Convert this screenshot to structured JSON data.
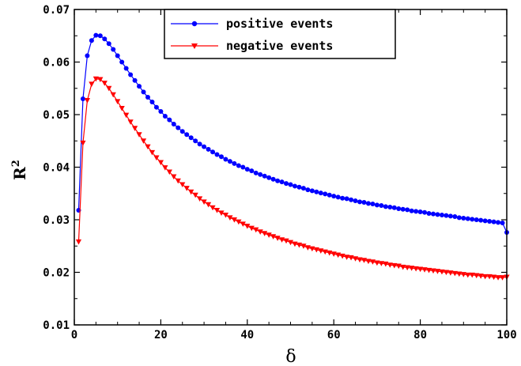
{
  "chart_data": {
    "type": "line",
    "xlabel": "δ",
    "ylabel": "R",
    "ylabel_superscript": "2",
    "xlim": [
      0,
      100
    ],
    "ylim": [
      0.01,
      0.07
    ],
    "x_ticks": [
      0,
      20,
      40,
      60,
      80,
      100
    ],
    "x_tick_labels": [
      "0",
      "20",
      "40",
      "60",
      "80",
      "100"
    ],
    "y_ticks": [
      0.01,
      0.02,
      0.03,
      0.04,
      0.05,
      0.06,
      0.07
    ],
    "y_tick_labels": [
      "0.01",
      "0.02",
      "0.03",
      "0.04",
      "0.05",
      "0.06",
      "0.07"
    ],
    "legend_position": "top-center",
    "series": [
      {
        "name": "positive events",
        "color": "#0000ff",
        "marker": "circle",
        "x": [
          1,
          2,
          3,
          4,
          5,
          6,
          7,
          8,
          9,
          10,
          11,
          12,
          13,
          14,
          15,
          16,
          17,
          18,
          19,
          20,
          21,
          22,
          23,
          24,
          25,
          26,
          27,
          28,
          29,
          30,
          31,
          32,
          33,
          34,
          35,
          36,
          37,
          38,
          39,
          40,
          41,
          42,
          43,
          44,
          45,
          46,
          47,
          48,
          49,
          50,
          51,
          52,
          53,
          54,
          55,
          56,
          57,
          58,
          59,
          60,
          61,
          62,
          63,
          64,
          65,
          66,
          67,
          68,
          69,
          70,
          71,
          72,
          73,
          74,
          75,
          76,
          77,
          78,
          79,
          80,
          81,
          82,
          83,
          84,
          85,
          86,
          87,
          88,
          89,
          90,
          91,
          92,
          93,
          94,
          95,
          96,
          97,
          98,
          99,
          100
        ],
        "y": [
          0.0318,
          0.053,
          0.0612,
          0.0641,
          0.0651,
          0.065,
          0.0644,
          0.0635,
          0.0624,
          0.0612,
          0.06,
          0.0588,
          0.0576,
          0.0565,
          0.0554,
          0.0543,
          0.0533,
          0.0524,
          0.0514,
          0.0506,
          0.0497,
          0.049,
          0.0482,
          0.0475,
          0.0468,
          0.0462,
          0.0456,
          0.045,
          0.0444,
          0.0439,
          0.0434,
          0.0429,
          0.0424,
          0.042,
          0.0415,
          0.0411,
          0.0407,
          0.0403,
          0.04,
          0.0396,
          0.0393,
          0.0389,
          0.0386,
          0.0383,
          0.038,
          0.0377,
          0.0374,
          0.0372,
          0.0369,
          0.0367,
          0.0364,
          0.0362,
          0.036,
          0.0357,
          0.0355,
          0.0353,
          0.0351,
          0.0349,
          0.0347,
          0.0345,
          0.0343,
          0.0341,
          0.034,
          0.0338,
          0.0336,
          0.0334,
          0.0333,
          0.0331,
          0.033,
          0.0328,
          0.0327,
          0.0325,
          0.0324,
          0.0323,
          0.0321,
          0.032,
          0.0319,
          0.0317,
          0.0316,
          0.0315,
          0.0314,
          0.0312,
          0.0311,
          0.031,
          0.0309,
          0.0308,
          0.0307,
          0.0306,
          0.0304,
          0.0303,
          0.0302,
          0.0301,
          0.03,
          0.0299,
          0.0298,
          0.0297,
          0.0296,
          0.0295,
          0.0294,
          0.0276
        ]
      },
      {
        "name": "negative events",
        "color": "#ff0000",
        "marker": "triangle-down",
        "x": [
          1,
          2,
          3,
          4,
          5,
          6,
          7,
          8,
          9,
          10,
          11,
          12,
          13,
          14,
          15,
          16,
          17,
          18,
          19,
          20,
          21,
          22,
          23,
          24,
          25,
          26,
          27,
          28,
          29,
          30,
          31,
          32,
          33,
          34,
          35,
          36,
          37,
          38,
          39,
          40,
          41,
          42,
          43,
          44,
          45,
          46,
          47,
          48,
          49,
          50,
          51,
          52,
          53,
          54,
          55,
          56,
          57,
          58,
          59,
          60,
          61,
          62,
          63,
          64,
          65,
          66,
          67,
          68,
          69,
          70,
          71,
          72,
          73,
          74,
          75,
          76,
          77,
          78,
          79,
          80,
          81,
          82,
          83,
          84,
          85,
          86,
          87,
          88,
          89,
          90,
          91,
          92,
          93,
          94,
          95,
          96,
          97,
          98,
          99,
          100
        ],
        "y": [
          0.0258,
          0.0446,
          0.0527,
          0.0558,
          0.0568,
          0.0567,
          0.056,
          0.055,
          0.0538,
          0.0525,
          0.0512,
          0.0499,
          0.0486,
          0.0474,
          0.0462,
          0.045,
          0.0439,
          0.0428,
          0.0418,
          0.0409,
          0.0399,
          0.0391,
          0.0382,
          0.0374,
          0.0367,
          0.036,
          0.0353,
          0.0347,
          0.034,
          0.0334,
          0.0329,
          0.0323,
          0.0318,
          0.0313,
          0.0309,
          0.0304,
          0.03,
          0.0296,
          0.0292,
          0.0288,
          0.0284,
          0.0281,
          0.0277,
          0.0274,
          0.0271,
          0.0268,
          0.0265,
          0.0262,
          0.026,
          0.0257,
          0.0254,
          0.0252,
          0.025,
          0.0247,
          0.0245,
          0.0243,
          0.0241,
          0.0239,
          0.0237,
          0.0235,
          0.0233,
          0.0231,
          0.0229,
          0.0228,
          0.0226,
          0.0224,
          0.0223,
          0.0221,
          0.022,
          0.0218,
          0.0217,
          0.0216,
          0.0214,
          0.0213,
          0.0212,
          0.021,
          0.0209,
          0.0208,
          0.0207,
          0.0206,
          0.0205,
          0.0204,
          0.0203,
          0.0202,
          0.0201,
          0.02,
          0.0199,
          0.0198,
          0.0197,
          0.0196,
          0.0195,
          0.0195,
          0.0194,
          0.0193,
          0.0192,
          0.0192,
          0.0191,
          0.019,
          0.019,
          0.0191
        ]
      }
    ]
  }
}
